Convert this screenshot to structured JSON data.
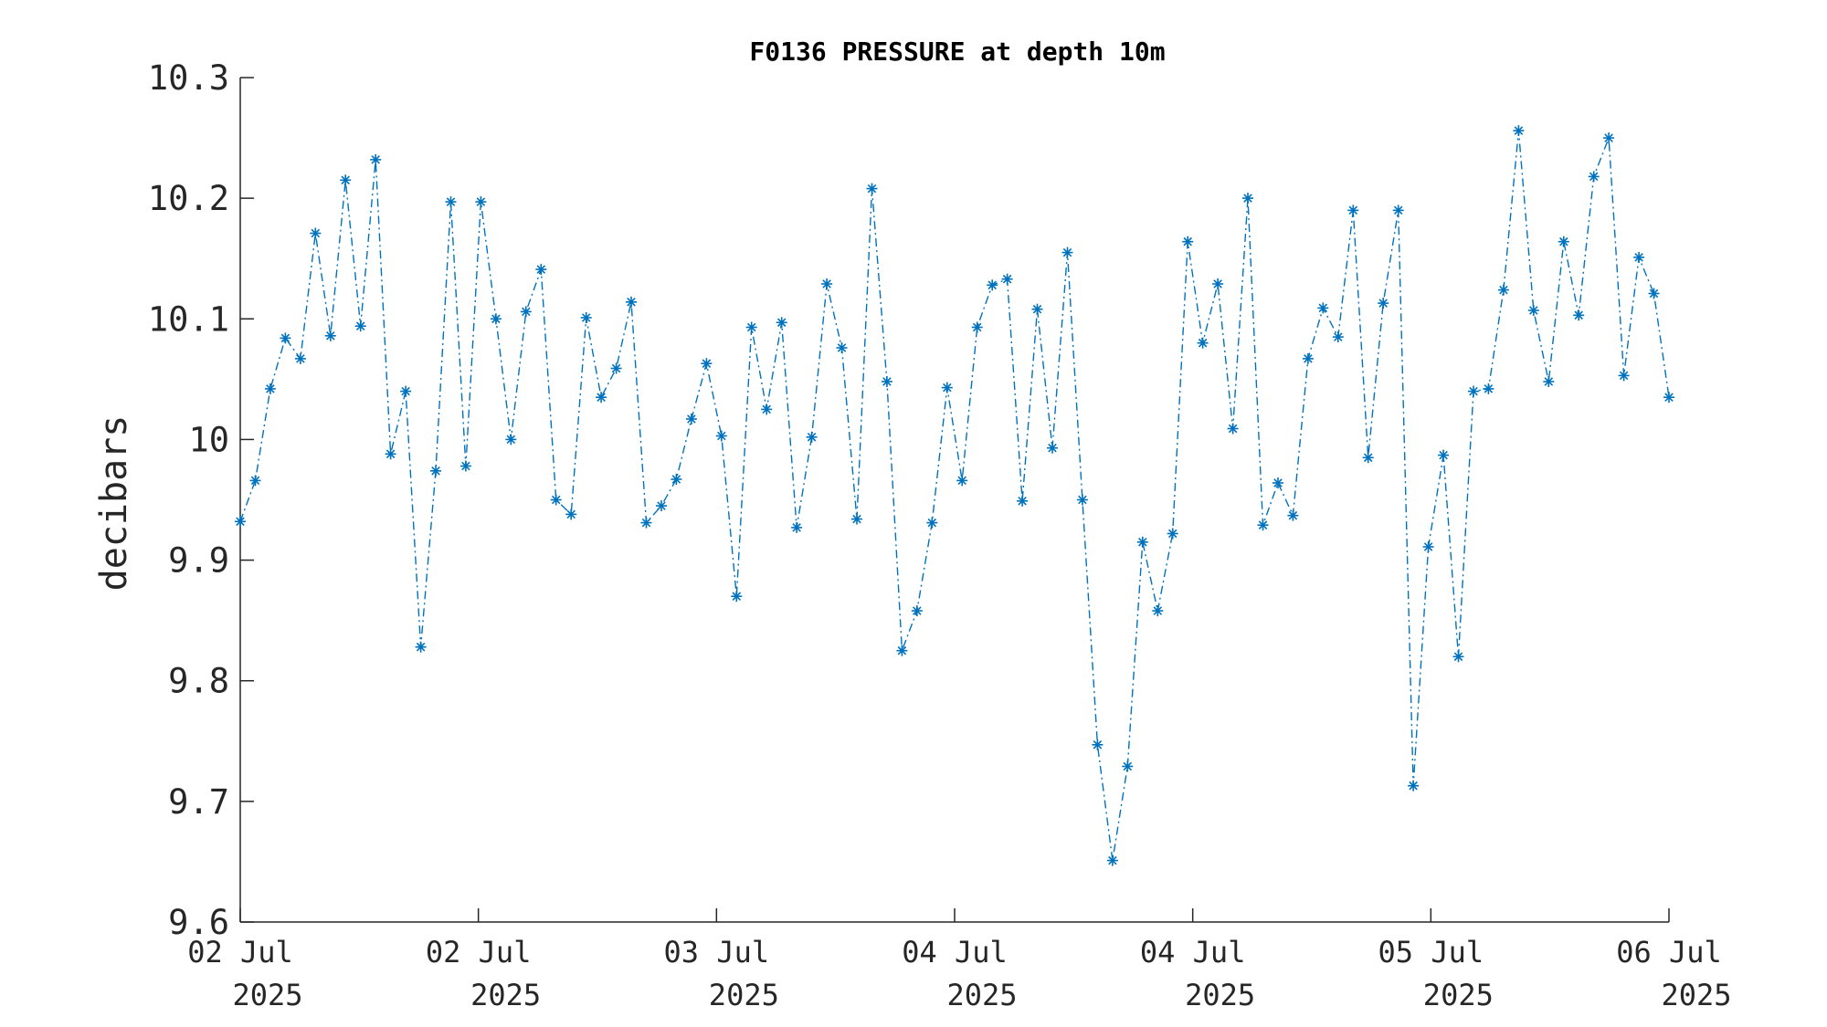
{
  "chart_data": {
    "type": "line",
    "title": "F0136 PRESSURE at depth 10m",
    "xlabel": "",
    "ylabel": "decibars",
    "ylim": [
      9.6,
      10.3
    ],
    "yticks": [
      "9.6",
      "9.7",
      "9.8",
      "9.9",
      "10",
      "10.1",
      "10.2",
      "10.3"
    ],
    "xticks": [
      {
        "day": "02 Jul",
        "year": "2025"
      },
      {
        "day": "02 Jul",
        "year": "2025"
      },
      {
        "day": "03 Jul",
        "year": "2025"
      },
      {
        "day": "04 Jul",
        "year": "2025"
      },
      {
        "day": "04 Jul",
        "year": "2025"
      },
      {
        "day": "05 Jul",
        "year": "2025"
      },
      {
        "day": "06 Jul",
        "year": "2025"
      }
    ],
    "grid": false,
    "line_style": "dash-dot",
    "marker": "asterisk",
    "color": "#0072BD",
    "series": [
      {
        "values": [
          9.932,
          9.966,
          10.042,
          10.084,
          10.067,
          10.171,
          10.086,
          10.215,
          10.094,
          10.232,
          9.988,
          10.04,
          9.828,
          9.974,
          10.197,
          9.978,
          10.197,
          10.1,
          10.0,
          10.106,
          10.141,
          9.95,
          9.938,
          10.101,
          10.035,
          10.059,
          10.114,
          9.931,
          9.945,
          9.967,
          10.017,
          10.063,
          10.003,
          9.87,
          10.093,
          10.025,
          10.097,
          9.927,
          10.002,
          10.129,
          10.076,
          9.934,
          10.208,
          10.048,
          9.825,
          9.858,
          9.931,
          10.043,
          9.966,
          10.093,
          10.128,
          10.133,
          9.949,
          10.108,
          9.993,
          10.155,
          9.95,
          9.747,
          9.651,
          9.729,
          9.915,
          9.858,
          9.922,
          10.164,
          10.08,
          10.129,
          10.009,
          10.2,
          9.929,
          9.964,
          9.937,
          10.067,
          10.109,
          10.085,
          10.19,
          9.985,
          10.113,
          10.19,
          9.713,
          9.911,
          9.987,
          9.82,
          10.04,
          10.042,
          10.124,
          10.256,
          10.107,
          10.048,
          10.164,
          10.103,
          10.218,
          10.25,
          10.053,
          10.151,
          10.121,
          10.035
        ]
      }
    ]
  }
}
